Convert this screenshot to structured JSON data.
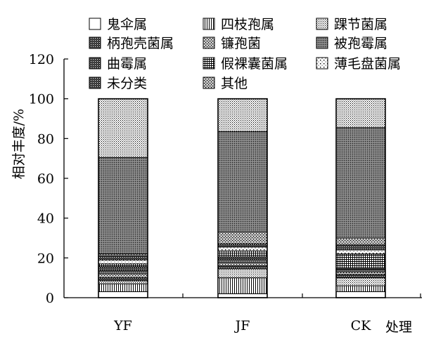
{
  "chart_data": {
    "type": "bar",
    "stacked": true,
    "categories": [
      "YF",
      "JF",
      "CK"
    ],
    "xlabel": "处理",
    "ylabel": "相对丰度/%",
    "ylim": [
      0,
      120
    ],
    "yticks": [
      0,
      20,
      40,
      60,
      80,
      100,
      120
    ],
    "legend_position": "top",
    "series": [
      {
        "name": "鬼伞属",
        "pattern": "blank",
        "values": [
          3,
          2,
          3
        ]
      },
      {
        "name": "四枝孢属",
        "pattern": "vlines",
        "values": [
          4,
          8,
          3
        ]
      },
      {
        "name": "踝节菌属",
        "pattern": "fine-dots",
        "values": [
          1.5,
          4.5,
          4
        ]
      },
      {
        "name": "柄孢壳菌属",
        "pattern": "dark-dots",
        "values": [
          1.5,
          1.5,
          1.5
        ]
      },
      {
        "name": "镰孢菌",
        "pattern": "cross-dots",
        "values": [
          2,
          1.5,
          1.5
        ]
      },
      {
        "name": "被孢霉属",
        "pattern": "gray-dots",
        "values": [
          1.5,
          1.5,
          1
        ]
      },
      {
        "name": "曲霉属",
        "pattern": "dark-dots",
        "values": [
          2,
          1.5,
          1
        ]
      },
      {
        "name": "假裸囊菌属",
        "pattern": "grid",
        "values": [
          1.5,
          3,
          7
        ]
      },
      {
        "name": "薄毛盘菌属",
        "pattern": "sparse-dots",
        "values": [
          2,
          2,
          2
        ]
      },
      {
        "name": "未分类",
        "pattern": "dark-dots",
        "values": [
          2,
          1.5,
          2.5
        ]
      },
      {
        "name": "其他",
        "pattern": "cross-dots",
        "values": [
          1,
          6,
          3.5
        ]
      },
      {
        "name": "",
        "pattern": "gray-dots",
        "values": [
          48.5,
          50.5,
          55.5
        ]
      },
      {
        "name": "",
        "pattern": "fine-dots",
        "values": [
          29.5,
          16.5,
          14.5
        ]
      }
    ]
  }
}
